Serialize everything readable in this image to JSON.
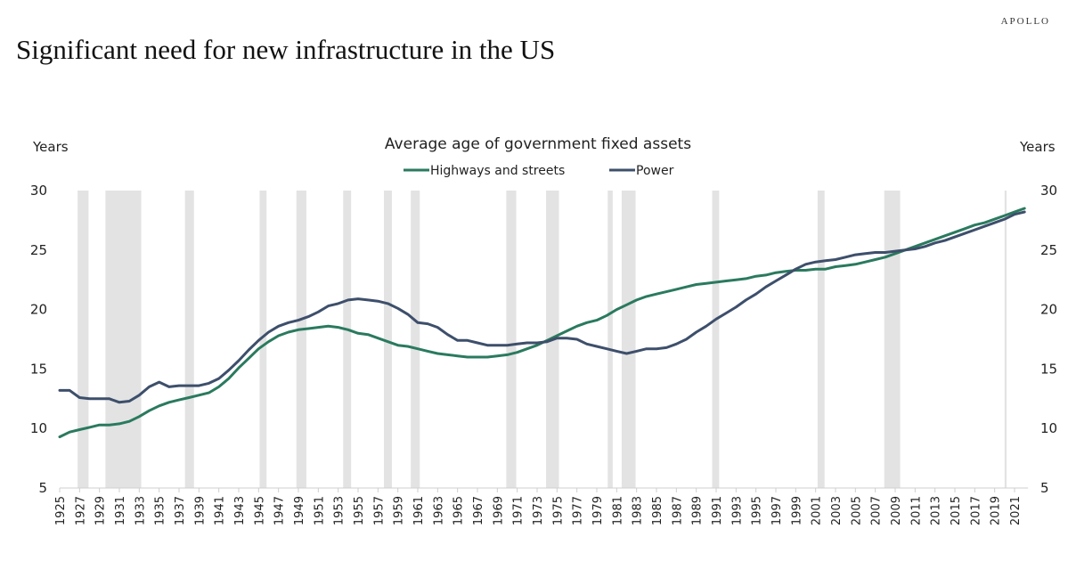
{
  "brand": "APOLLO",
  "headline": "Significant need for new infrastructure in the US",
  "chart_data": {
    "type": "line",
    "title": "Average age of government fixed assets",
    "ylabel_left": "Years",
    "ylabel_right": "Years",
    "xlabel": "",
    "ylim": [
      5,
      30
    ],
    "yticks": [
      5,
      10,
      15,
      20,
      25,
      30
    ],
    "xlim": [
      1925,
      2022
    ],
    "xtick_labels": [
      "1925",
      "1927",
      "1929",
      "1931",
      "1933",
      "1935",
      "1937",
      "1939",
      "1941",
      "1943",
      "1945",
      "1947",
      "1949",
      "1951",
      "1953",
      "1955",
      "1957",
      "1959",
      "1961",
      "1963",
      "1965",
      "1967",
      "1969",
      "1971",
      "1973",
      "1975",
      "1977",
      "1979",
      "1981",
      "1983",
      "1985",
      "1987",
      "1989",
      "1991",
      "1993",
      "1995",
      "1997",
      "1999",
      "2001",
      "2003",
      "2005",
      "2007",
      "2009",
      "2011",
      "2013",
      "2015",
      "2017",
      "2019",
      "2021"
    ],
    "grid": false,
    "legend_position": "top-center",
    "recessions": [
      [
        1926.8,
        1927.9
      ],
      [
        1929.6,
        1933.2
      ],
      [
        1937.6,
        1938.5
      ],
      [
        1945.1,
        1945.8
      ],
      [
        1948.8,
        1949.8
      ],
      [
        1953.5,
        1954.3
      ],
      [
        1957.6,
        1958.4
      ],
      [
        1960.3,
        1961.2
      ],
      [
        1969.9,
        1970.9
      ],
      [
        1973.9,
        1975.2
      ],
      [
        1980.1,
        1980.6
      ],
      [
        1981.5,
        1982.9
      ],
      [
        1990.6,
        1991.3
      ],
      [
        2001.2,
        2001.9
      ],
      [
        2007.9,
        2009.5
      ],
      [
        2020.0,
        2020.2
      ]
    ],
    "recession_color": "#e3e3e3",
    "x": [
      1925,
      1926,
      1927,
      1928,
      1929,
      1930,
      1931,
      1932,
      1933,
      1934,
      1935,
      1936,
      1937,
      1938,
      1939,
      1940,
      1941,
      1942,
      1943,
      1944,
      1945,
      1946,
      1947,
      1948,
      1949,
      1950,
      1951,
      1952,
      1953,
      1954,
      1955,
      1956,
      1957,
      1958,
      1959,
      1960,
      1961,
      1962,
      1963,
      1964,
      1965,
      1966,
      1967,
      1968,
      1969,
      1970,
      1971,
      1972,
      1973,
      1974,
      1975,
      1976,
      1977,
      1978,
      1979,
      1980,
      1981,
      1982,
      1983,
      1984,
      1985,
      1986,
      1987,
      1988,
      1989,
      1990,
      1991,
      1992,
      1993,
      1994,
      1995,
      1996,
      1997,
      1998,
      1999,
      2000,
      2001,
      2002,
      2003,
      2004,
      2005,
      2006,
      2007,
      2008,
      2009,
      2010,
      2011,
      2012,
      2013,
      2014,
      2015,
      2016,
      2017,
      2018,
      2019,
      2020,
      2021,
      2022
    ],
    "series": [
      {
        "name": "Highways and streets",
        "color": "#2a7a5e",
        "values": [
          9.3,
          9.7,
          9.9,
          10.1,
          10.3,
          10.3,
          10.4,
          10.6,
          11.0,
          11.5,
          11.9,
          12.2,
          12.4,
          12.6,
          12.8,
          13.0,
          13.5,
          14.2,
          15.1,
          15.9,
          16.7,
          17.3,
          17.8,
          18.1,
          18.3,
          18.4,
          18.5,
          18.6,
          18.5,
          18.3,
          18.0,
          17.9,
          17.6,
          17.3,
          17.0,
          16.9,
          16.7,
          16.5,
          16.3,
          16.2,
          16.1,
          16.0,
          16.0,
          16.0,
          16.1,
          16.2,
          16.4,
          16.7,
          17.0,
          17.4,
          17.8,
          18.2,
          18.6,
          18.9,
          19.1,
          19.5,
          20.0,
          20.4,
          20.8,
          21.1,
          21.3,
          21.5,
          21.7,
          21.9,
          22.1,
          22.2,
          22.3,
          22.4,
          22.5,
          22.6,
          22.8,
          22.9,
          23.1,
          23.2,
          23.3,
          23.3,
          23.4,
          23.4,
          23.6,
          23.7,
          23.8,
          24.0,
          24.2,
          24.4,
          24.7,
          25.0,
          25.3,
          25.6,
          25.9,
          26.2,
          26.5,
          26.8,
          27.1,
          27.3,
          27.6,
          27.9,
          28.2,
          28.5
        ]
      },
      {
        "name": "Power",
        "color": "#3d4f6b",
        "values": [
          13.2,
          13.2,
          12.6,
          12.5,
          12.5,
          12.5,
          12.2,
          12.3,
          12.8,
          13.5,
          13.9,
          13.5,
          13.6,
          13.6,
          13.6,
          13.8,
          14.2,
          14.9,
          15.7,
          16.6,
          17.4,
          18.1,
          18.6,
          18.9,
          19.1,
          19.4,
          19.8,
          20.3,
          20.5,
          20.8,
          20.9,
          20.8,
          20.7,
          20.5,
          20.1,
          19.6,
          18.9,
          18.8,
          18.5,
          17.9,
          17.4,
          17.4,
          17.2,
          17.0,
          17.0,
          17.0,
          17.1,
          17.2,
          17.2,
          17.3,
          17.6,
          17.6,
          17.5,
          17.1,
          16.9,
          16.7,
          16.5,
          16.3,
          16.5,
          16.7,
          16.7,
          16.8,
          17.1,
          17.5,
          18.1,
          18.6,
          19.2,
          19.7,
          20.2,
          20.8,
          21.3,
          21.9,
          22.4,
          22.9,
          23.4,
          23.8,
          24.0,
          24.1,
          24.2,
          24.4,
          24.6,
          24.7,
          24.8,
          24.8,
          24.9,
          25.0,
          25.1,
          25.3,
          25.6,
          25.8,
          26.1,
          26.4,
          26.7,
          27.0,
          27.3,
          27.6,
          28.0,
          28.2
        ]
      }
    ]
  }
}
